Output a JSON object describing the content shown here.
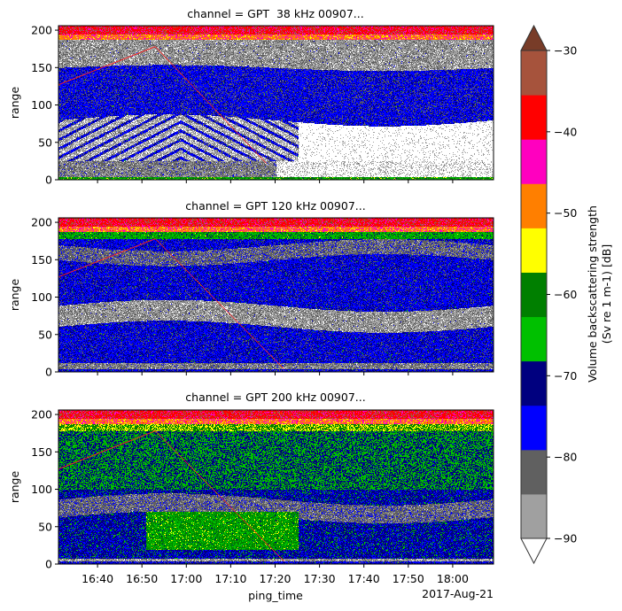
{
  "chart_data": {
    "type": "heatmap",
    "panels": [
      {
        "title": "channel = GPT  38 kHz 00907...",
        "ylabel": "range"
      },
      {
        "title": "channel = GPT 120 kHz 00907...",
        "ylabel": "range"
      },
      {
        "title": "channel = GPT 200 kHz 00907...",
        "ylabel": "range"
      }
    ],
    "xlabel": "ping_time",
    "x_offset_label": "2017-Aug-21",
    "x_tick_labels": [
      "16:40",
      "16:50",
      "17:00",
      "17:10",
      "17:20",
      "17:30",
      "17:40",
      "17:50",
      "18:00"
    ],
    "xlim": [
      "16:31",
      "18:09"
    ],
    "y_ticks": [
      0,
      50,
      100,
      150,
      200
    ],
    "ylim": [
      0,
      206
    ],
    "colorbar": {
      "label_line1": "Volume backscattering strength",
      "label_line2": "(Sv re 1 m-1) [dB]",
      "vmin": -90,
      "vmax": -30,
      "ticks": [
        "−30",
        "−40",
        "−50",
        "−60",
        "−70",
        "−80",
        "−90"
      ],
      "tick_values": [
        -30,
        -40,
        -50,
        -60,
        -70,
        -80,
        -90
      ],
      "colors": [
        "#a0a0a0",
        "#606060",
        "#0000ff",
        "#00007f",
        "#00c000",
        "#007f00",
        "#ffff00",
        "#ff7f00",
        "#ff00bf",
        "#ff0000",
        "#a6533c"
      ],
      "over_color": "#783c28",
      "under_color": "#ffffff",
      "extend": "both"
    }
  }
}
